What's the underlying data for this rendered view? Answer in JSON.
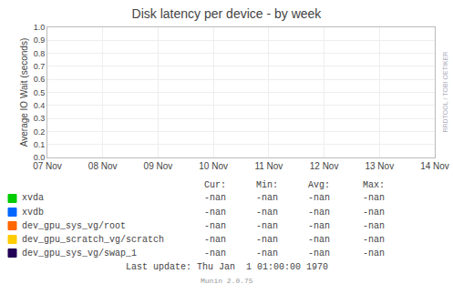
{
  "chart_data": {
    "type": "line",
    "title": "Disk latency per device - by week",
    "y_label": "Average IO Wait (seconds)",
    "categories": [
      "07 Nov",
      "08 Nov",
      "09 Nov",
      "10 Nov",
      "11 Nov",
      "12 Nov",
      "13 Nov",
      "14 Nov"
    ],
    "ylim": [
      0.0,
      1.0
    ],
    "yticks": [
      {
        "value": 0.0,
        "label": "0.0"
      },
      0.1,
      0.2,
      0.3,
      0.4,
      0.5,
      0.6,
      0.7,
      0.8,
      0.9,
      {
        "value": 1.0,
        "label": "1.0"
      }
    ],
    "grid": true,
    "table_headers": [
      "Cur:",
      "Min:",
      "Avg:",
      "Max:"
    ],
    "series": [
      {
        "name": "xvda",
        "color": "#00cc00",
        "values": [
          null,
          null,
          null,
          null,
          null,
          null,
          null,
          null
        ],
        "table_values": [
          "-nan",
          "-nan",
          "-nan",
          "-nan"
        ]
      },
      {
        "name": "xvdb",
        "color": "#0066ff",
        "values": [
          null,
          null,
          null,
          null,
          null,
          null,
          null,
          null
        ],
        "table_values": [
          "-nan",
          "-nan",
          "-nan",
          "-nan"
        ]
      },
      {
        "name": "dev_gpu_sys_vg/root",
        "color": "#ff6600",
        "values": [
          null,
          null,
          null,
          null,
          null,
          null,
          null,
          null
        ],
        "table_values": [
          "-nan",
          "-nan",
          "-nan",
          "-nan"
        ]
      },
      {
        "name": "dev_gpu_scratch_vg/scratch",
        "color": "#ffcc00",
        "values": [
          null,
          null,
          null,
          null,
          null,
          null,
          null,
          null
        ],
        "table_values": [
          "-nan",
          "-nan",
          "-nan",
          "-nan"
        ]
      },
      {
        "name": "dev_gpu_sys_vg/swap_1",
        "color": "#220055",
        "values": [
          null,
          null,
          null,
          null,
          null,
          null,
          null,
          null
        ],
        "table_values": [
          "-nan",
          "-nan",
          "-nan",
          "-nan"
        ]
      }
    ],
    "last_update": "Last update: Thu Jan  1 01:00:00 1970",
    "footer": "Munin 2.0.75",
    "watermark": "RRDTOOL / TOBI OETIKER"
  }
}
